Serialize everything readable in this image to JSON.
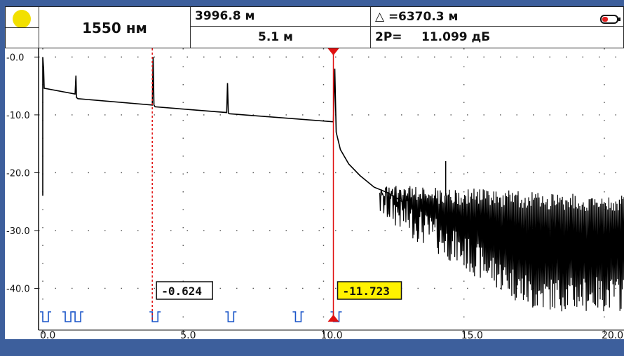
{
  "header": {
    "indicator_color": "#f2e000",
    "wavelength": "1550 нм",
    "distance_a": "3996.8 м",
    "distance_b": "5.1 м",
    "delta": "6370.3 м",
    "loss_label": "2P=",
    "loss_value": "11.099 дБ"
  },
  "chart_data": {
    "type": "line",
    "title": "",
    "xlabel": "",
    "ylabel": "",
    "xlim": [
      -0.15,
      20.7
    ],
    "ylim": [
      -46,
      1.5
    ],
    "x_ticks": [
      "0.0",
      "5.0",
      "10.0",
      "15.0",
      "20.0"
    ],
    "x_tick_values": [
      0,
      5,
      10,
      15,
      20
    ],
    "y_ticks": [
      "-0.0",
      "-10.0",
      "-20.0",
      "-30.0",
      "-40.0"
    ],
    "y_tick_values": [
      0,
      -10,
      -20,
      -30,
      -40
    ],
    "trace": {
      "x": [
        0,
        0,
        0.03,
        0.05,
        1.15,
        1.18,
        1.2,
        1.25,
        3.9,
        3.93,
        3.96,
        4.0,
        6.55,
        6.58,
        6.61,
        6.65,
        10.35,
        10.4,
        10.45,
        10.6,
        10.9,
        11.3,
        11.8,
        12.3,
        12.8
      ],
      "y": [
        -24,
        0,
        -2,
        -5.4,
        -6.4,
        -3.2,
        -7,
        -7.2,
        -8.3,
        0,
        -8.3,
        -8.6,
        -9.6,
        -4.5,
        -9.7,
        -9.8,
        -11.2,
        -2,
        -13,
        -16,
        -18.5,
        -20.5,
        -22.5,
        -23.5,
        -25
      ]
    },
    "noise": {
      "x_start": 12.0,
      "x_end": 20.7,
      "top": [
        -22,
        -24
      ],
      "bottom": [
        -28,
        -44
      ]
    },
    "spike": {
      "x": 14.35,
      "top": -18,
      "bottom": -24
    },
    "markers": [
      {
        "x": 3.9,
        "style": "dashed",
        "label": "-0.624",
        "label_bg": "#ffffff"
      },
      {
        "x": 10.35,
        "style": "solid",
        "label": "-11.723",
        "label_bg": "#fff200"
      }
    ],
    "event_marks": [
      0,
      0.8,
      1.15,
      3.9,
      6.6,
      9.0,
      10.35
    ],
    "grid": "dotted",
    "colors": {
      "trace": "#000000",
      "cursor": "#e01010",
      "background": "#ffffff",
      "event": "#1a55c8"
    }
  }
}
